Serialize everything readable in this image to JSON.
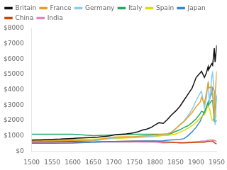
{
  "chart_data": {
    "type": "line",
    "xlim": [
      1500,
      1950
    ],
    "xticks": [
      1500,
      1550,
      1600,
      1650,
      1700,
      1750,
      1800,
      1850,
      1900,
      1950
    ],
    "ylim": [
      0,
      8000
    ],
    "yticks": [
      {
        "value": 0,
        "label": "$0"
      },
      {
        "value": 1000,
        "label": "$1000"
      },
      {
        "value": 2000,
        "label": "$2000"
      },
      {
        "value": 3000,
        "label": "$3000"
      },
      {
        "value": 4000,
        "label": "$4000"
      },
      {
        "value": 5000,
        "label": "$5000"
      },
      {
        "value": 6000,
        "label": "$6000"
      },
      {
        "value": 7000,
        "label": "$7000"
      },
      {
        "value": 8000,
        "label": "$8000"
      }
    ],
    "grid": false,
    "legend": "upper left",
    "series": [
      {
        "name": "Britain",
        "color": "#111111",
        "x": [
          1500,
          1510,
          1520,
          1530,
          1540,
          1550,
          1560,
          1570,
          1580,
          1590,
          1600,
          1610,
          1620,
          1630,
          1640,
          1650,
          1660,
          1670,
          1680,
          1690,
          1700,
          1710,
          1720,
          1730,
          1740,
          1750,
          1760,
          1770,
          1780,
          1790,
          1800,
          1810,
          1820,
          1830,
          1840,
          1850,
          1860,
          1870,
          1880,
          1890,
          1900,
          1910,
          1913,
          1920,
          1925,
          1929,
          1930,
          1938,
          1940,
          1944,
          1946,
          1950
        ],
        "values": [
          714,
          720,
          730,
          740,
          750,
          760,
          770,
          780,
          800,
          810,
          820,
          835,
          850,
          860,
          870,
          880,
          900,
          930,
          960,
          990,
          1050,
          1080,
          1100,
          1120,
          1150,
          1200,
          1270,
          1370,
          1430,
          1530,
          1700,
          1850,
          1800,
          2050,
          2350,
          2600,
          2900,
          3300,
          3700,
          4100,
          4800,
          5100,
          5200,
          4800,
          5100,
          5500,
          5300,
          5700,
          5600,
          6700,
          5800,
          6900
        ]
      },
      {
        "name": "France",
        "color": "#e8a020",
        "x": [
          1500,
          1550,
          1600,
          1650,
          1700,
          1750,
          1800,
          1820,
          1830,
          1840,
          1850,
          1860,
          1870,
          1880,
          1890,
          1900,
          1910,
          1913,
          1920,
          1929,
          1930,
          1938,
          1940,
          1944,
          1946,
          1950
        ],
        "values": [
          660,
          680,
          690,
          700,
          910,
          950,
          1050,
          1100,
          1120,
          1200,
          1450,
          1700,
          1900,
          2200,
          2500,
          2900,
          3200,
          3500,
          3100,
          4400,
          4100,
          4200,
          3600,
          2200,
          3600,
          5200
        ]
      },
      {
        "name": "Germany",
        "color": "#88ccee",
        "x": [
          1500,
          1550,
          1600,
          1650,
          1700,
          1750,
          1800,
          1820,
          1830,
          1840,
          1850,
          1860,
          1870,
          1880,
          1890,
          1900,
          1910,
          1913,
          1920,
          1925,
          1929,
          1930,
          1932,
          1938,
          1940,
          1944,
          1946,
          1950
        ],
        "values": [
          676,
          700,
          710,
          660,
          850,
          900,
          980,
          1060,
          1120,
          1250,
          1450,
          1700,
          1950,
          2300,
          2700,
          3300,
          3800,
          3900,
          2800,
          3500,
          4500,
          4100,
          3100,
          4900,
          5100,
          3600,
          1700,
          3700
        ]
      },
      {
        "name": "Italy",
        "color": "#22aa66",
        "x": [
          1500,
          1550,
          1600,
          1650,
          1700,
          1750,
          1800,
          1820,
          1830,
          1840,
          1850,
          1860,
          1870,
          1880,
          1890,
          1900,
          1910,
          1913,
          1920,
          1929,
          1930,
          1938,
          1940,
          1944,
          1946,
          1950
        ],
        "values": [
          1100,
          1100,
          1100,
          1000,
          1050,
          1100,
          1100,
          1100,
          1100,
          1150,
          1280,
          1380,
          1530,
          1650,
          1850,
          2100,
          2450,
          2600,
          2500,
          3200,
          3000,
          3300,
          3300,
          1900,
          2700,
          3600
        ]
      },
      {
        "name": "Spain",
        "color": "#dddd00",
        "x": [
          1500,
          1550,
          1600,
          1650,
          1700,
          1750,
          1800,
          1820,
          1830,
          1840,
          1850,
          1860,
          1870,
          1880,
          1890,
          1900,
          1910,
          1913,
          1920,
          1929,
          1933,
          1936,
          1939,
          1944,
          1950
        ],
        "values": [
          698,
          750,
          780,
          770,
          820,
          880,
          950,
          1010,
          1010,
          1060,
          1110,
          1220,
          1340,
          1480,
          1650,
          1870,
          2150,
          2250,
          2350,
          3000,
          2700,
          2300,
          2000,
          2100,
          2350
        ]
      },
      {
        "name": "Japan",
        "color": "#3388cc",
        "x": [
          1500,
          1550,
          1600,
          1650,
          1700,
          1750,
          1800,
          1820,
          1830,
          1840,
          1850,
          1860,
          1870,
          1880,
          1890,
          1900,
          1910,
          1913,
          1920,
          1929,
          1938,
          1940,
          1944,
          1946,
          1950
        ],
        "values": [
          500,
          510,
          520,
          570,
          620,
          640,
          660,
          670,
          700,
          720,
          740,
          760,
          800,
          1000,
          1250,
          1550,
          1950,
          2150,
          2550,
          3100,
          3800,
          4100,
          3900,
          1900,
          2000
        ]
      },
      {
        "name": "China",
        "color": "#cc4400",
        "x": [
          1500,
          1550,
          1600,
          1650,
          1700,
          1750,
          1800,
          1820,
          1830,
          1840,
          1850,
          1860,
          1870,
          1880,
          1890,
          1900,
          1910,
          1913,
          1920,
          1929,
          1938,
          1940,
          1944,
          1950
        ],
        "values": [
          600,
          610,
          620,
          600,
          620,
          640,
          650,
          600,
          590,
          580,
          550,
          530,
          530,
          540,
          550,
          560,
          570,
          570,
          580,
          630,
          640,
          650,
          550,
          450
        ]
      },
      {
        "name": "India",
        "color": "#dd88bb",
        "x": [
          1500,
          1550,
          1600,
          1650,
          1700,
          1750,
          1800,
          1820,
          1830,
          1840,
          1850,
          1860,
          1870,
          1880,
          1890,
          1900,
          1910,
          1913,
          1920,
          1929,
          1938,
          1940,
          1944,
          1950
        ],
        "values": [
          550,
          560,
          570,
          580,
          600,
          590,
          570,
          533,
          540,
          550,
          555,
          560,
          555,
          570,
          590,
          610,
          630,
          660,
          640,
          700,
          720,
          720,
          690,
          620
        ]
      }
    ]
  }
}
